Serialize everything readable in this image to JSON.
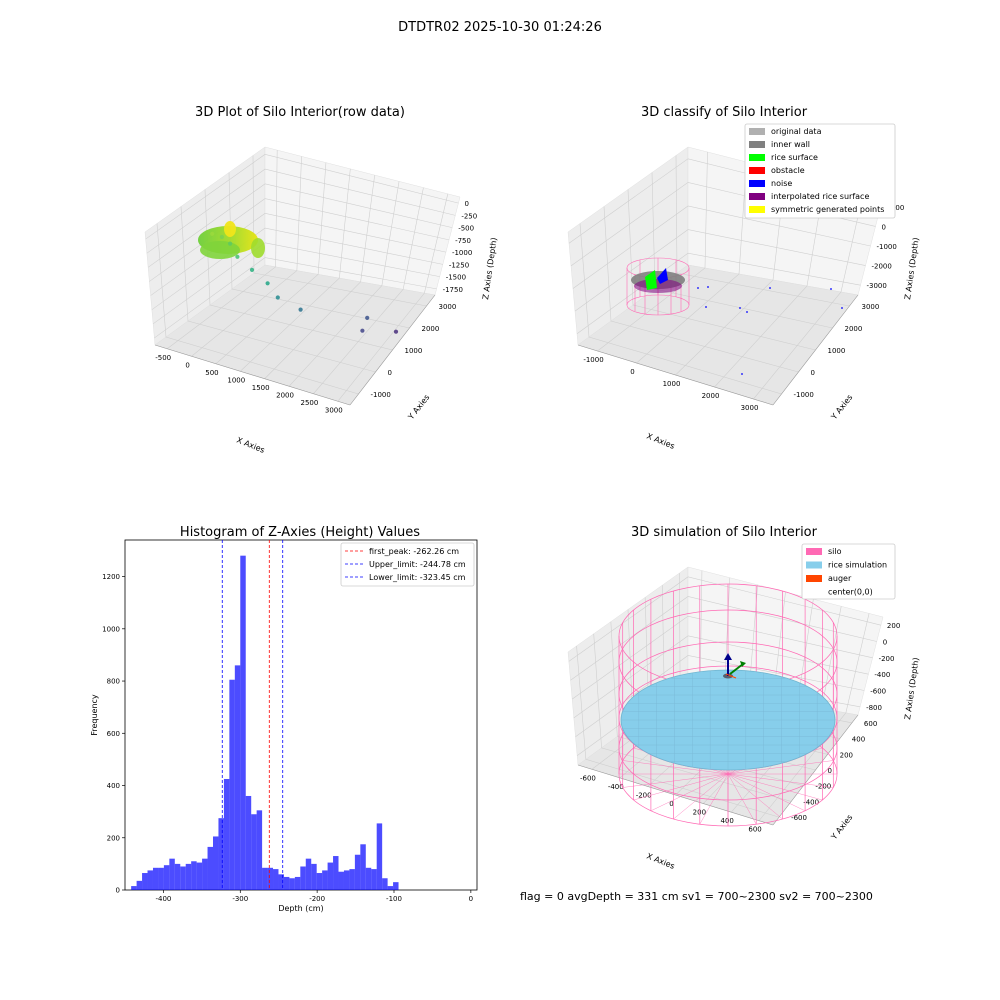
{
  "figure": {
    "suptitle": "DTDTR02 2025-10-30 01:24:26",
    "status_text": "flag = 0     avgDepth = 331 cm  sv1 = 700~2300  sv2 = 700~2300"
  },
  "chart_data": [
    {
      "type": "scatter",
      "subtype": "3d",
      "title": "3D Plot of Silo Interior(row data)",
      "xlabel": "X Axies",
      "ylabel": "Y Axies",
      "zlabel": "Z Axies (Depth)",
      "x_ticks": [
        "-500",
        "0",
        "500",
        "1000",
        "1500",
        "2000",
        "2500",
        "3000"
      ],
      "y_ticks": [
        "-1000",
        "0",
        "1000",
        "2000",
        "3000"
      ],
      "z_ticks": [
        "0",
        "-250",
        "-500",
        "-750",
        "-1000",
        "-1250",
        "-1500",
        "-1750"
      ],
      "grid": true,
      "colormap": "viridis by depth",
      "points": [
        {
          "x": 420,
          "y": 300,
          "z": -300
        },
        {
          "x": 560,
          "y": 400,
          "z": -340
        },
        {
          "x": 700,
          "y": 450,
          "z": -420
        },
        {
          "x": 820,
          "y": 500,
          "z": -600
        },
        {
          "x": 1000,
          "y": 700,
          "z": -800
        },
        {
          "x": 1200,
          "y": 900,
          "z": -1000
        },
        {
          "x": 1350,
          "y": 1000,
          "z": -1200
        },
        {
          "x": 1700,
          "y": 1200,
          "z": -1350
        },
        {
          "x": 2800,
          "y": 1500,
          "z": -1500
        },
        {
          "x": 3000,
          "y": 2300,
          "z": -1650
        },
        {
          "x": 1900,
          "y": 3100,
          "z": -1850
        }
      ]
    },
    {
      "type": "scatter",
      "subtype": "3d",
      "title": "3D classify of Silo Interior",
      "xlabel": "X Axies",
      "ylabel": "Y Axies",
      "zlabel": "Z Axies (Depth)",
      "x_ticks": [
        "-1000",
        "0",
        "1000",
        "2000",
        "3000"
      ],
      "y_ticks": [
        "-1000",
        "0",
        "1000",
        "2000",
        "3000"
      ],
      "z_ticks": [
        "1000",
        "0",
        "-1000",
        "-2000",
        "-3000"
      ],
      "grid": true,
      "legend_position": "top-right",
      "legend": [
        {
          "label": "original data",
          "color": "#b0b0b0"
        },
        {
          "label": "inner wall",
          "color": "#808080"
        },
        {
          "label": "rice surface",
          "color": "#00ff00"
        },
        {
          "label": "obstacle",
          "color": "#ff0000"
        },
        {
          "label": "noise",
          "color": "#0000ff"
        },
        {
          "label": "interpolated rice surface",
          "color": "#800080"
        },
        {
          "label": "symmetric generated points",
          "color": "#ffff00"
        }
      ]
    },
    {
      "type": "bar",
      "subtype": "histogram",
      "title": "Histogram of Z-Axies (Height) Values",
      "xlabel": "Depth (cm)",
      "ylabel": "Frequency",
      "xlim": [
        -450,
        8
      ],
      "ylim": [
        0,
        1340
      ],
      "x_ticks": [
        -400,
        -300,
        -200,
        -100,
        0
      ],
      "y_ticks": [
        0,
        200,
        400,
        600,
        800,
        1000,
        1200
      ],
      "bin_width": 7.1,
      "bin_start": -442,
      "bar_color": "#0000ff",
      "values": [
        15,
        35,
        65,
        75,
        85,
        85,
        95,
        120,
        100,
        90,
        100,
        110,
        105,
        120,
        165,
        205,
        275,
        425,
        805,
        860,
        1280,
        360,
        290,
        305,
        85,
        85,
        80,
        60,
        50,
        45,
        50,
        90,
        120,
        100,
        65,
        75,
        105,
        130,
        70,
        75,
        80,
        135,
        175,
        85,
        80,
        255,
        45,
        15,
        30
      ],
      "grid": false,
      "legend_position": "top-right",
      "reference_lines": [
        {
          "label": "first_peak: -262.26 cm",
          "x": -262.26,
          "color": "#ff0000"
        },
        {
          "label": "Upper_limit: -244.78 cm",
          "x": -244.78,
          "color": "#0000ff"
        },
        {
          "label": "Lower_limit: -323.45 cm",
          "x": -323.45,
          "color": "#0000ff"
        }
      ]
    },
    {
      "type": "scatter",
      "subtype": "3d",
      "title": "3D simulation of Silo Interior",
      "xlabel": "X Axies",
      "ylabel": "Y Axies",
      "zlabel": "Z Axies (Depth)",
      "x_ticks": [
        "-600",
        "-400",
        "-200",
        "0",
        "200",
        "400",
        "600"
      ],
      "y_ticks": [
        "-600",
        "-400",
        "-200",
        "0",
        "200",
        "400",
        "600"
      ],
      "z_ticks": [
        "200",
        "0",
        "-200",
        "-400",
        "-600",
        "-800"
      ],
      "grid": true,
      "legend_position": "top-right",
      "legend": [
        {
          "label": "silo",
          "color": "#ff69b4"
        },
        {
          "label": "rice simulation",
          "color": "#87ceeb"
        },
        {
          "label": "auger",
          "color": "#ff4500"
        },
        {
          "label": "center(0,0)",
          "color": "none"
        }
      ]
    }
  ]
}
